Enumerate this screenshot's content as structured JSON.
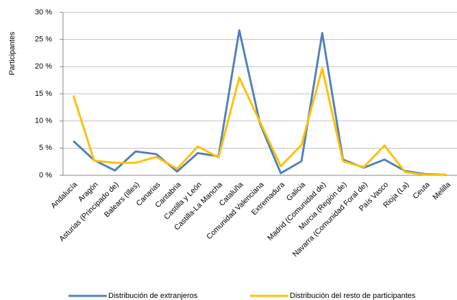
{
  "chart_data": {
    "type": "line",
    "y_axis_label": "Participantes",
    "categories": [
      "Andalucía",
      "Aragón",
      "Asturias (Principado de)",
      "Balears (Illes)",
      "Canarias",
      "Cantabria",
      "Castilla y León",
      "Castilla-La Mancha",
      "Cataluña",
      "Comunidad Valenciana",
      "Extremadura",
      "Galicia",
      "Madrid (Comunidad de)",
      "Murcia (Región de)",
      "Navarra (Comunidad Foral de)",
      "País Vasco",
      "Rioja (La)",
      "Ceuta",
      "Melilla"
    ],
    "series": [
      {
        "name": "Distribución de extranjeros",
        "color": "#4f81bd",
        "values": [
          6.3,
          2.8,
          0.9,
          4.4,
          3.9,
          0.7,
          4.1,
          3.5,
          26.7,
          9.5,
          0.4,
          2.6,
          26.2,
          2.9,
          1.4,
          2.9,
          0.8,
          0.2,
          0.1
        ]
      },
      {
        "name": "Distribución del resto de participantes",
        "color": "#ffc000",
        "values": [
          14.7,
          2.7,
          2.3,
          2.3,
          3.4,
          1.2,
          5.3,
          3.3,
          18.0,
          9.8,
          1.7,
          5.6,
          19.7,
          2.6,
          1.5,
          5.5,
          0.6,
          0.1,
          0.1
        ]
      }
    ],
    "ylim": [
      0,
      30
    ],
    "yticks": [
      {
        "value": 0,
        "label": "0 %"
      },
      {
        "value": 5,
        "label": "5 %"
      },
      {
        "value": 10,
        "label": "10 %"
      },
      {
        "value": 15,
        "label": "15 %"
      },
      {
        "value": 20,
        "label": "20 %"
      },
      {
        "value": 25,
        "label": "25 %"
      },
      {
        "value": 30,
        "label": "30 %"
      }
    ],
    "grid": true,
    "legend": "bottom"
  }
}
